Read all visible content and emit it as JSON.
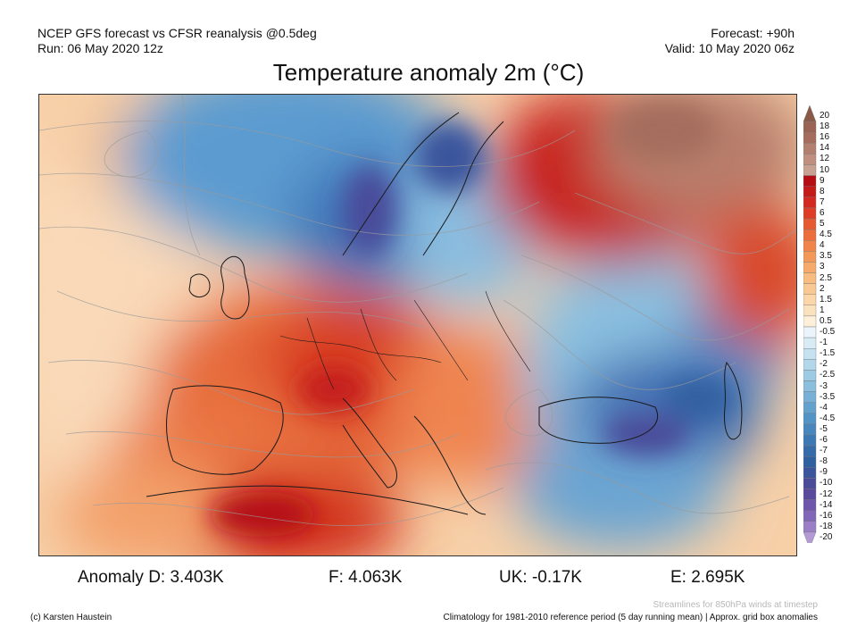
{
  "header": {
    "line1_left": "NCEP GFS forecast vs CFSR reanalysis @0.5deg",
    "line2_left": "Run: 06 May 2020 12z",
    "line1_right": "Forecast: +90h",
    "line2_right": "Valid: 10 May 2020 06z"
  },
  "title": "Temperature anomaly 2m (°C)",
  "legend": {
    "labels": [
      "20",
      "18",
      "16",
      "14",
      "12",
      "10",
      "9",
      "8",
      "7",
      "6",
      "5",
      "4.5",
      "4",
      "3.5",
      "3",
      "2.5",
      "2",
      "1.5",
      "1",
      "0.5",
      "-0.5",
      "-1",
      "-1.5",
      "-2",
      "-2.5",
      "-3",
      "-3.5",
      "-4",
      "-4.5",
      "-5",
      "-6",
      "-7",
      "-8",
      "-9",
      "-10",
      "-12",
      "-14",
      "-16",
      "-18",
      "-20"
    ],
    "colors": [
      "#8a5a48",
      "#9a6454",
      "#a56d5d",
      "#b37f6e",
      "#bf8f80",
      "#c9a193",
      "#b40e14",
      "#c41a1a",
      "#d22a22",
      "#de3e28",
      "#e65a32",
      "#ec6e3c",
      "#f1844a",
      "#f4985a",
      "#f6aa6c",
      "#f8bb80",
      "#f9c994",
      "#fad6a8",
      "#fbe2be",
      "#fdf0da",
      "#eaf4fa",
      "#d9ecf6",
      "#c6e2f0",
      "#b2d6ea",
      "#9fcae4",
      "#8cbedd",
      "#78b0d6",
      "#64a2ce",
      "#5294c6",
      "#4886be",
      "#3e78b4",
      "#366aa8",
      "#3060a0",
      "#3a559c",
      "#4a4c9a",
      "#5a4a9e",
      "#6d56ac",
      "#8266b8",
      "#9a7ec6",
      "#b39ad4"
    ]
  },
  "anomalies": {
    "d": "Anomaly D: 3.403K",
    "f": "F: 4.063K",
    "uk": "UK: -0.17K",
    "e": "E: 2.695K"
  },
  "footer": {
    "streamlines": "Streamlines for 850hPa winds at timestep",
    "credit": "(c) Karsten Haustein",
    "climatology": "Climatology for 1981-2010 reference period (5 day running mean) | Approx. grid box anomalies"
  }
}
